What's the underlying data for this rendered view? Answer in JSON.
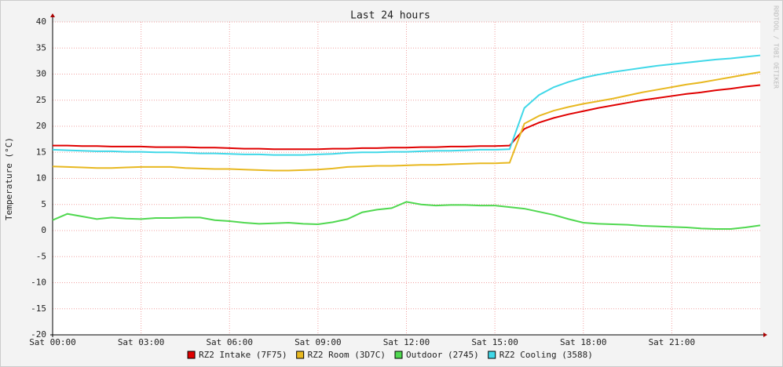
{
  "chart_data": {
    "type": "line",
    "title": "Last 24 hours",
    "y_label": "Temperature (°C)",
    "watermark": "RRDTOOL / TOBI OETIKER",
    "x": [
      0,
      0.5,
      1,
      1.5,
      2,
      2.5,
      3,
      3.5,
      4,
      4.5,
      5,
      5.5,
      6,
      6.5,
      7,
      7.5,
      8,
      8.5,
      9,
      9.5,
      10,
      10.5,
      11,
      11.5,
      12,
      12.5,
      13,
      13.5,
      14,
      14.5,
      15,
      15.5,
      16,
      16.5,
      17,
      17.5,
      18,
      18.5,
      19,
      19.5,
      20,
      20.5,
      21,
      21.5,
      22,
      22.5,
      23,
      23.5,
      24
    ],
    "xlim": [
      0,
      24
    ],
    "xticks": [
      {
        "value": 0,
        "label": "Sat 00:00"
      },
      {
        "value": 3,
        "label": "Sat 03:00"
      },
      {
        "value": 6,
        "label": "Sat 06:00"
      },
      {
        "value": 9,
        "label": "Sat 09:00"
      },
      {
        "value": 12,
        "label": "Sat 12:00"
      },
      {
        "value": 15,
        "label": "Sat 15:00"
      },
      {
        "value": 18,
        "label": "Sat 18:00"
      },
      {
        "value": 21,
        "label": "Sat 21:00"
      }
    ],
    "ylim": [
      -20,
      40
    ],
    "yticks": [
      -20,
      -15,
      -10,
      -5,
      0,
      5,
      10,
      15,
      20,
      25,
      30,
      35,
      40
    ],
    "grid": true,
    "series": [
      {
        "name": "RZ2 Intake (7F75)",
        "color": "#e00000",
        "values": [
          16.3,
          16.3,
          16.2,
          16.2,
          16.1,
          16.1,
          16.1,
          16.0,
          16.0,
          16.0,
          15.9,
          15.9,
          15.8,
          15.7,
          15.7,
          15.6,
          15.6,
          15.6,
          15.6,
          15.7,
          15.7,
          15.8,
          15.8,
          15.9,
          15.9,
          16.0,
          16.0,
          16.1,
          16.1,
          16.2,
          16.2,
          16.3,
          19.5,
          20.7,
          21.6,
          22.3,
          22.9,
          23.5,
          24.0,
          24.5,
          25.0,
          25.4,
          25.8,
          26.2,
          26.5,
          26.9,
          27.2,
          27.6,
          27.9
        ]
      },
      {
        "name": "RZ2 Room (3D7C)",
        "color": "#e8b820",
        "values": [
          12.3,
          12.2,
          12.1,
          12.0,
          12.0,
          12.1,
          12.2,
          12.2,
          12.2,
          12.0,
          11.9,
          11.8,
          11.8,
          11.7,
          11.6,
          11.5,
          11.5,
          11.6,
          11.7,
          11.9,
          12.2,
          12.3,
          12.4,
          12.4,
          12.5,
          12.6,
          12.6,
          12.7,
          12.8,
          12.9,
          12.9,
          13.0,
          20.5,
          22.0,
          23.0,
          23.7,
          24.3,
          24.8,
          25.3,
          25.9,
          26.5,
          27.0,
          27.5,
          28.0,
          28.4,
          28.9,
          29.4,
          29.9,
          30.4
        ]
      },
      {
        "name": "Outdoor (2745)",
        "color": "#50d850",
        "values": [
          2.0,
          3.2,
          2.7,
          2.2,
          2.5,
          2.3,
          2.2,
          2.4,
          2.4,
          2.5,
          2.5,
          2.0,
          1.8,
          1.5,
          1.3,
          1.4,
          1.5,
          1.3,
          1.2,
          1.6,
          2.2,
          3.5,
          4.0,
          4.3,
          5.5,
          5.0,
          4.8,
          4.9,
          4.9,
          4.8,
          4.8,
          4.5,
          4.2,
          3.6,
          3.0,
          2.2,
          1.5,
          1.3,
          1.2,
          1.1,
          0.9,
          0.8,
          0.7,
          0.6,
          0.4,
          0.3,
          0.3,
          0.6,
          1.0
        ]
      },
      {
        "name": "RZ2 Cooling (3588)",
        "color": "#40d8e8",
        "values": [
          15.5,
          15.4,
          15.3,
          15.2,
          15.2,
          15.1,
          15.1,
          15.0,
          15.0,
          14.9,
          14.8,
          14.8,
          14.7,
          14.6,
          14.6,
          14.5,
          14.5,
          14.5,
          14.6,
          14.7,
          14.9,
          15.0,
          15.0,
          15.1,
          15.1,
          15.2,
          15.3,
          15.3,
          15.4,
          15.5,
          15.5,
          15.6,
          23.5,
          26.0,
          27.5,
          28.5,
          29.3,
          29.9,
          30.4,
          30.8,
          31.2,
          31.6,
          31.9,
          32.2,
          32.5,
          32.8,
          33.0,
          33.3,
          33.6
        ]
      }
    ]
  }
}
